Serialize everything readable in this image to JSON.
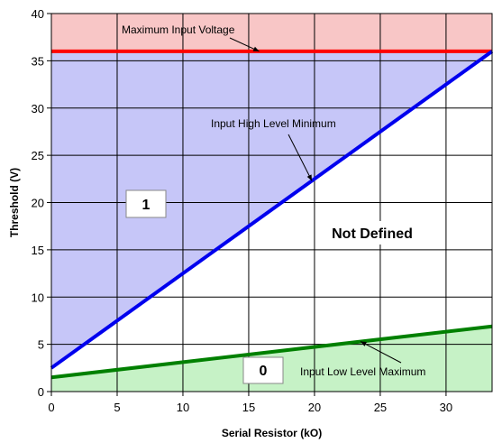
{
  "chart_data": {
    "type": "line",
    "xlabel": "Serial Resistor (kO)",
    "ylabel": "Threshold (V)",
    "xlim": [
      0,
      33.5
    ],
    "ylim": [
      0,
      40
    ],
    "x_ticks": [
      "0",
      "5",
      "10",
      "15",
      "20",
      "25",
      "30"
    ],
    "y_ticks": [
      "0",
      "5",
      "10",
      "15",
      "20",
      "25",
      "30",
      "35",
      "40"
    ],
    "grid": true,
    "series": [
      {
        "name": "Maximum Input Voltage",
        "x": [
          0,
          33.5
        ],
        "y": [
          36,
          36
        ],
        "color": "#ff0000"
      },
      {
        "name": "Input High Level Minimum",
        "x": [
          0,
          33.5
        ],
        "y": [
          2.5,
          36
        ],
        "color": "#0000ee"
      },
      {
        "name": "Input Low Level Maximum",
        "x": [
          0,
          33.5
        ],
        "y": [
          1.5,
          6.9
        ],
        "color": "#008000"
      }
    ],
    "regions": [
      {
        "name": "above-max",
        "color": "#f8c6c6"
      },
      {
        "name": "logic-1",
        "color": "#c6c6f8"
      },
      {
        "name": "logic-0",
        "color": "#c6f2c6"
      }
    ],
    "annotations": [
      {
        "text": "Maximum Input Voltage",
        "arrow_to": [
          15.8,
          36
        ]
      },
      {
        "text": "Input High Level Minimum",
        "arrow_to": [
          19.8,
          22.3
        ]
      },
      {
        "text": "Input Low Level Maximum",
        "arrow_to": [
          23.5,
          5.3
        ]
      }
    ],
    "labels": {
      "one": "1",
      "zero": "0",
      "not_defined": "Not Defined"
    }
  }
}
